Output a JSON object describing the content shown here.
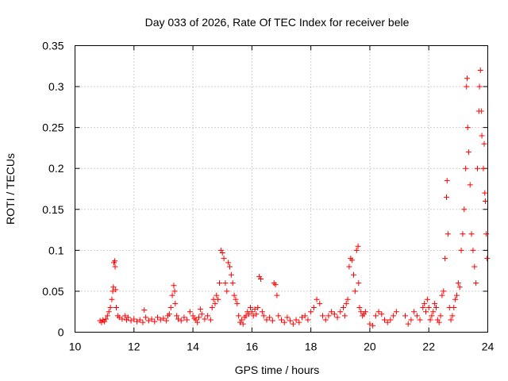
{
  "chart_data": {
    "type": "scatter",
    "title": "Day 033 of 2026, Rate Of TEC Index for receiver bele",
    "xlabel": "GPS time / hours",
    "ylabel": "ROTI / TECUs",
    "xlim": [
      10,
      24
    ],
    "ylim": [
      0,
      0.35
    ],
    "xticks": [
      10,
      12,
      14,
      16,
      18,
      20,
      22,
      24
    ],
    "xtick_labels": [
      "10",
      "12",
      "14",
      "16",
      "18",
      "20",
      "22",
      "24"
    ],
    "yticks": [
      0,
      0.05,
      0.1,
      0.15,
      0.2,
      0.25,
      0.3,
      0.35
    ],
    "ytick_labels": [
      "0",
      "0.05",
      "0.1",
      "0.15",
      "0.2",
      "0.25",
      "0.3",
      "0.35"
    ],
    "grid": true,
    "marker": "plus",
    "color": "#ff0000",
    "series": [
      {
        "name": "ROTI",
        "points": [
          [
            10.85,
            0.014
          ],
          [
            10.9,
            0.012
          ],
          [
            10.95,
            0.015
          ],
          [
            11.0,
            0.013
          ],
          [
            11.05,
            0.016
          ],
          [
            11.1,
            0.02
          ],
          [
            11.15,
            0.025
          ],
          [
            11.2,
            0.03
          ],
          [
            11.25,
            0.04
          ],
          [
            11.28,
            0.05
          ],
          [
            11.3,
            0.055
          ],
          [
            11.32,
            0.085
          ],
          [
            11.35,
            0.087
          ],
          [
            11.36,
            0.08
          ],
          [
            11.38,
            0.052
          ],
          [
            11.4,
            0.03
          ],
          [
            11.45,
            0.02
          ],
          [
            11.5,
            0.018
          ],
          [
            11.6,
            0.016
          ],
          [
            11.7,
            0.02
          ],
          [
            11.75,
            0.015
          ],
          [
            11.8,
            0.018
          ],
          [
            11.9,
            0.014
          ],
          [
            12.0,
            0.016
          ],
          [
            12.1,
            0.013
          ],
          [
            12.2,
            0.015
          ],
          [
            12.3,
            0.012
          ],
          [
            12.35,
            0.027
          ],
          [
            12.4,
            0.018
          ],
          [
            12.5,
            0.014
          ],
          [
            12.6,
            0.016
          ],
          [
            12.7,
            0.013
          ],
          [
            12.8,
            0.018
          ],
          [
            12.9,
            0.015
          ],
          [
            13.0,
            0.017
          ],
          [
            13.1,
            0.014
          ],
          [
            13.15,
            0.02
          ],
          [
            13.2,
            0.022
          ],
          [
            13.25,
            0.03
          ],
          [
            13.3,
            0.045
          ],
          [
            13.35,
            0.057
          ],
          [
            13.38,
            0.05
          ],
          [
            13.4,
            0.035
          ],
          [
            13.45,
            0.02
          ],
          [
            13.5,
            0.016
          ],
          [
            13.6,
            0.014
          ],
          [
            13.7,
            0.018
          ],
          [
            13.8,
            0.015
          ],
          [
            13.9,
            0.025
          ],
          [
            14.0,
            0.02
          ],
          [
            14.05,
            0.017
          ],
          [
            14.1,
            0.015
          ],
          [
            14.15,
            0.012
          ],
          [
            14.2,
            0.018
          ],
          [
            14.25,
            0.028
          ],
          [
            14.3,
            0.022
          ],
          [
            14.4,
            0.016
          ],
          [
            14.5,
            0.02
          ],
          [
            14.6,
            0.015
          ],
          [
            14.65,
            0.03
          ],
          [
            14.7,
            0.04
          ],
          [
            14.75,
            0.035
          ],
          [
            14.8,
            0.045
          ],
          [
            14.85,
            0.04
          ],
          [
            14.9,
            0.06
          ],
          [
            14.95,
            0.1
          ],
          [
            15.0,
            0.097
          ],
          [
            15.05,
            0.09
          ],
          [
            15.1,
            0.06
          ],
          [
            15.15,
            0.05
          ],
          [
            15.2,
            0.085
          ],
          [
            15.25,
            0.08
          ],
          [
            15.3,
            0.07
          ],
          [
            15.35,
            0.06
          ],
          [
            15.4,
            0.045
          ],
          [
            15.45,
            0.04
          ],
          [
            15.5,
            0.035
          ],
          [
            15.55,
            0.02
          ],
          [
            15.6,
            0.012
          ],
          [
            15.65,
            0.015
          ],
          [
            15.7,
            0.01
          ],
          [
            15.75,
            0.018
          ],
          [
            15.8,
            0.02
          ],
          [
            15.85,
            0.025
          ],
          [
            15.9,
            0.022
          ],
          [
            15.95,
            0.03
          ],
          [
            16.0,
            0.025
          ],
          [
            16.05,
            0.02
          ],
          [
            16.1,
            0.028
          ],
          [
            16.15,
            0.022
          ],
          [
            16.2,
            0.03
          ],
          [
            16.25,
            0.068
          ],
          [
            16.3,
            0.065
          ],
          [
            16.35,
            0.025
          ],
          [
            16.4,
            0.02
          ],
          [
            16.5,
            0.015
          ],
          [
            16.6,
            0.018
          ],
          [
            16.7,
            0.014
          ],
          [
            16.75,
            0.06
          ],
          [
            16.8,
            0.058
          ],
          [
            16.85,
            0.045
          ],
          [
            16.9,
            0.02
          ],
          [
            17.0,
            0.015
          ],
          [
            17.1,
            0.012
          ],
          [
            17.2,
            0.018
          ],
          [
            17.3,
            0.014
          ],
          [
            17.4,
            0.01
          ],
          [
            17.5,
            0.015
          ],
          [
            17.6,
            0.012
          ],
          [
            17.7,
            0.018
          ],
          [
            17.8,
            0.02
          ],
          [
            17.9,
            0.015
          ],
          [
            18.0,
            0.025
          ],
          [
            18.1,
            0.03
          ],
          [
            18.2,
            0.04
          ],
          [
            18.3,
            0.035
          ],
          [
            18.4,
            0.02
          ],
          [
            18.5,
            0.015
          ],
          [
            18.6,
            0.02
          ],
          [
            18.7,
            0.025
          ],
          [
            18.8,
            0.022
          ],
          [
            18.9,
            0.018
          ],
          [
            19.0,
            0.025
          ],
          [
            19.1,
            0.03
          ],
          [
            19.15,
            0.02
          ],
          [
            19.2,
            0.035
          ],
          [
            19.25,
            0.04
          ],
          [
            19.3,
            0.08
          ],
          [
            19.35,
            0.09
          ],
          [
            19.4,
            0.088
          ],
          [
            19.45,
            0.07
          ],
          [
            19.5,
            0.05
          ],
          [
            19.55,
            0.1
          ],
          [
            19.6,
            0.105
          ],
          [
            19.62,
            0.06
          ],
          [
            19.65,
            0.03
          ],
          [
            19.7,
            0.025
          ],
          [
            19.75,
            0.02
          ],
          [
            19.8,
            0.022
          ],
          [
            19.85,
            0.025
          ],
          [
            20.0,
            0.01
          ],
          [
            20.1,
            0.008
          ],
          [
            20.2,
            0.02
          ],
          [
            20.3,
            0.025
          ],
          [
            20.4,
            0.022
          ],
          [
            20.5,
            0.015
          ],
          [
            20.6,
            0.012
          ],
          [
            20.7,
            0.015
          ],
          [
            20.8,
            0.02
          ],
          [
            20.9,
            0.025
          ],
          [
            21.2,
            0.02
          ],
          [
            21.3,
            0.01
          ],
          [
            21.4,
            0.015
          ],
          [
            21.5,
            0.025
          ],
          [
            21.6,
            0.02
          ],
          [
            21.7,
            0.015
          ],
          [
            21.8,
            0.03
          ],
          [
            21.85,
            0.035
          ],
          [
            21.9,
            0.025
          ],
          [
            21.95,
            0.04
          ],
          [
            22.0,
            0.03
          ],
          [
            22.05,
            0.015
          ],
          [
            22.1,
            0.02
          ],
          [
            22.15,
            0.025
          ],
          [
            22.2,
            0.035
          ],
          [
            22.25,
            0.03
          ],
          [
            22.3,
            0.015
          ],
          [
            22.35,
            0.012
          ],
          [
            22.4,
            0.02
          ],
          [
            22.45,
            0.045
          ],
          [
            22.5,
            0.05
          ],
          [
            22.55,
            0.09
          ],
          [
            22.6,
            0.165
          ],
          [
            22.62,
            0.185
          ],
          [
            22.65,
            0.12
          ],
          [
            22.7,
            0.03
          ],
          [
            22.75,
            0.015
          ],
          [
            22.8,
            0.02
          ],
          [
            22.85,
            0.03
          ],
          [
            22.9,
            0.04
          ],
          [
            22.95,
            0.045
          ],
          [
            23.0,
            0.06
          ],
          [
            23.05,
            0.055
          ],
          [
            23.1,
            0.1
          ],
          [
            23.15,
            0.12
          ],
          [
            23.2,
            0.15
          ],
          [
            23.25,
            0.2
          ],
          [
            23.28,
            0.3
          ],
          [
            23.3,
            0.31
          ],
          [
            23.32,
            0.25
          ],
          [
            23.35,
            0.22
          ],
          [
            23.4,
            0.18
          ],
          [
            23.45,
            0.12
          ],
          [
            23.5,
            0.1
          ],
          [
            23.55,
            0.08
          ],
          [
            23.6,
            0.06
          ],
          [
            23.65,
            0.2
          ],
          [
            23.7,
            0.27
          ],
          [
            23.72,
            0.3
          ],
          [
            23.75,
            0.32
          ],
          [
            23.78,
            0.27
          ],
          [
            23.8,
            0.24
          ],
          [
            23.85,
            0.2
          ],
          [
            23.88,
            0.23
          ],
          [
            23.9,
            0.17
          ],
          [
            23.92,
            0.16
          ],
          [
            23.95,
            0.12
          ],
          [
            23.98,
            0.09
          ]
        ]
      }
    ]
  }
}
